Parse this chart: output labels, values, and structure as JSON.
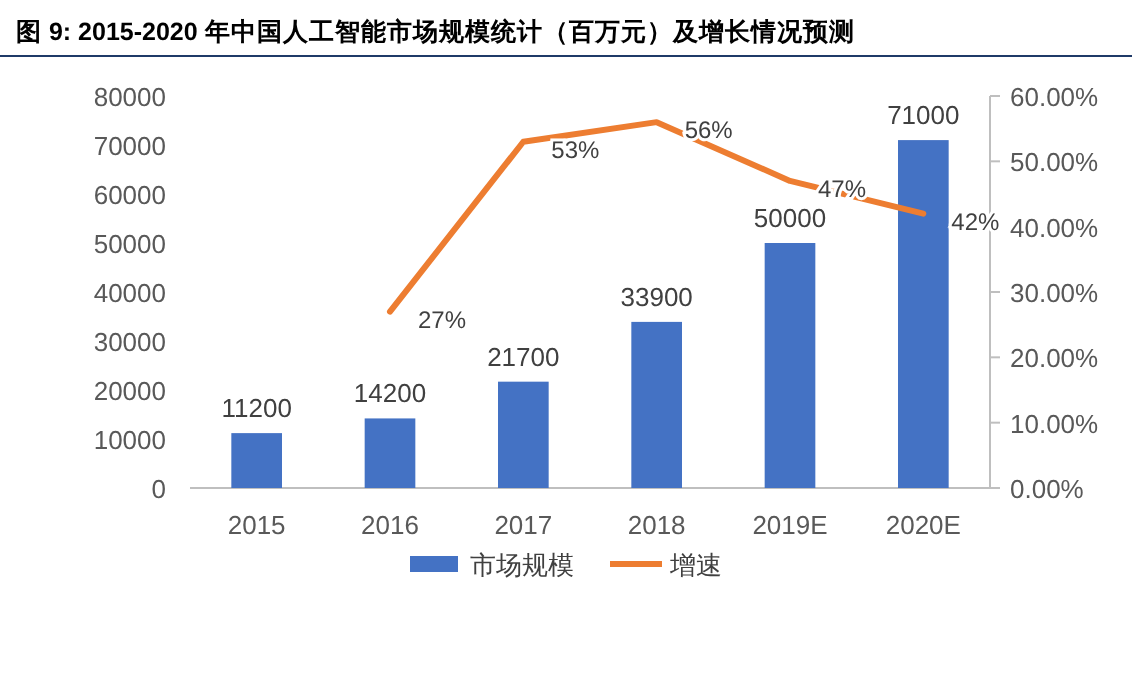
{
  "chart_data": {
    "type": "bar",
    "title": "图 9: 2015-2020 年中国人工智能市场规模统计（百万元）及增长情况预测",
    "categories": [
      "2015",
      "2016",
      "2017",
      "2018",
      "2019E",
      "2020E"
    ],
    "series": [
      {
        "name": "市场规模",
        "color": "#4472c4",
        "values": [
          11200,
          14200,
          21700,
          33900,
          50000,
          71000
        ]
      },
      {
        "name": "增速",
        "type": "line",
        "axis": "y2",
        "color": "#ed7d31",
        "values": [
          null,
          27,
          53,
          56,
          47,
          42
        ],
        "value_labels": [
          null,
          "27%",
          "53%",
          "56%",
          "47%",
          "42%"
        ]
      }
    ],
    "ylim": [
      0,
      80000
    ],
    "yticks": [
      0,
      10000,
      20000,
      30000,
      40000,
      50000,
      60000,
      70000,
      80000
    ],
    "y2lim": [
      0,
      60
    ],
    "y2ticks": [
      {
        "value": 0,
        "label": "0.00%"
      },
      {
        "value": 10,
        "label": "10.00%"
      },
      {
        "value": 20,
        "label": "20.00%"
      },
      {
        "value": 30,
        "label": "30.00%"
      },
      {
        "value": 40,
        "label": "40.00%"
      },
      {
        "value": 50,
        "label": "50.00%"
      },
      {
        "value": 60,
        "label": "60.00%"
      }
    ],
    "data_labels": true,
    "legend": "bottom",
    "grid": false,
    "marker": "none"
  }
}
